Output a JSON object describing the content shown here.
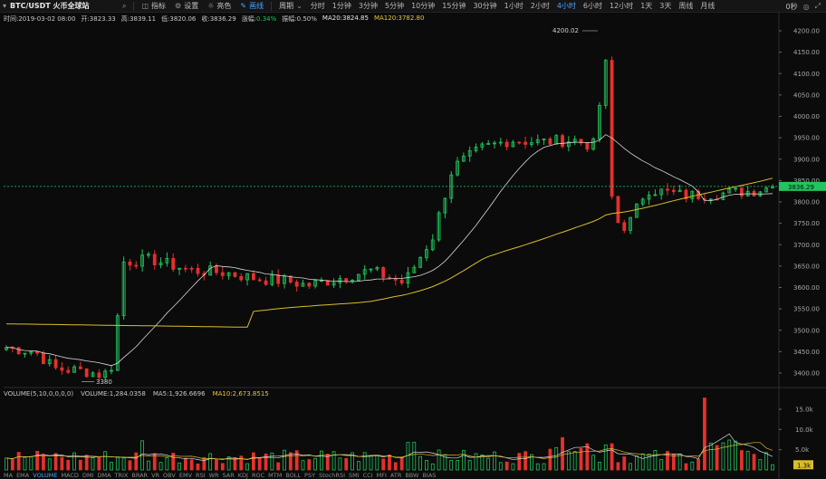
{
  "toolbar": {
    "symbol": "BTC/USDT 火币全球站",
    "indicator_label": "指标",
    "settings_label": "设置",
    "theme_label": "亮色",
    "draw_label": "画线",
    "period_label": "周期",
    "periods": [
      "分时",
      "1分钟",
      "3分钟",
      "5分钟",
      "10分钟",
      "15分钟",
      "30分钟",
      "1小时",
      "2小时",
      "4小时",
      "6小时",
      "12小时",
      "1天",
      "3天",
      "周线",
      "月线"
    ],
    "active_period": "4小时",
    "right_text": "0秒"
  },
  "info": {
    "time": "时间:2019-03-02 08:00",
    "open": "开:3823.33",
    "high": "高:3839.11",
    "low": "低:3820.06",
    "close": "收:3836.29",
    "change_label": "涨幅:",
    "change_value": "0.34%",
    "amplitude": "振幅:0.50%",
    "ma20": "MA20:3824.85",
    "ma120": "MA120:3782.80"
  },
  "volume_info": {
    "label": "VOLUME(5,10,0,0,0,0)",
    "volume": "VOLUME:1,284.0358",
    "ma5": "MA5:1,926.6696",
    "ma10": "MA10:2,673.8515"
  },
  "price_axis": {
    "labels": [
      "4200.00",
      "4150.00",
      "4100.00",
      "4050.00",
      "4000.00",
      "3950.00",
      "3900.00",
      "3850.00",
      "3800.00",
      "3750.00",
      "3700.00",
      "3650.00",
      "3600.00",
      "3550.00",
      "3500.00",
      "3450.00",
      "3400.00"
    ],
    "current_price": "3836.29",
    "high_marker": "4200.02",
    "low_marker": "3380"
  },
  "volume_axis": {
    "labels": [
      "15.0k",
      "10.0k",
      "5.0k"
    ],
    "current": "1.3k"
  },
  "indicators": [
    "MA",
    "EMA",
    "VOLUME",
    "MACD",
    "DMI",
    "DMA",
    "TRIX",
    "BRAR",
    "VR",
    "OBV",
    "EMV",
    "RSI",
    "WR",
    "SAR",
    "KDJ",
    "ROC",
    "MTM",
    "BOLL",
    "PSY",
    "StochRSI",
    "SMI",
    "CCI",
    "MFI",
    "ATR",
    "BBW",
    "BIAS"
  ],
  "active_indicator": "VOLUME",
  "colors": {
    "up": "#21c55e",
    "down": "#e5312b",
    "ma20": "#d8d8d8",
    "ma120": "#d9bd2b",
    "price_tag": "#21c55e",
    "accent": "#4aa3ff"
  }
}
